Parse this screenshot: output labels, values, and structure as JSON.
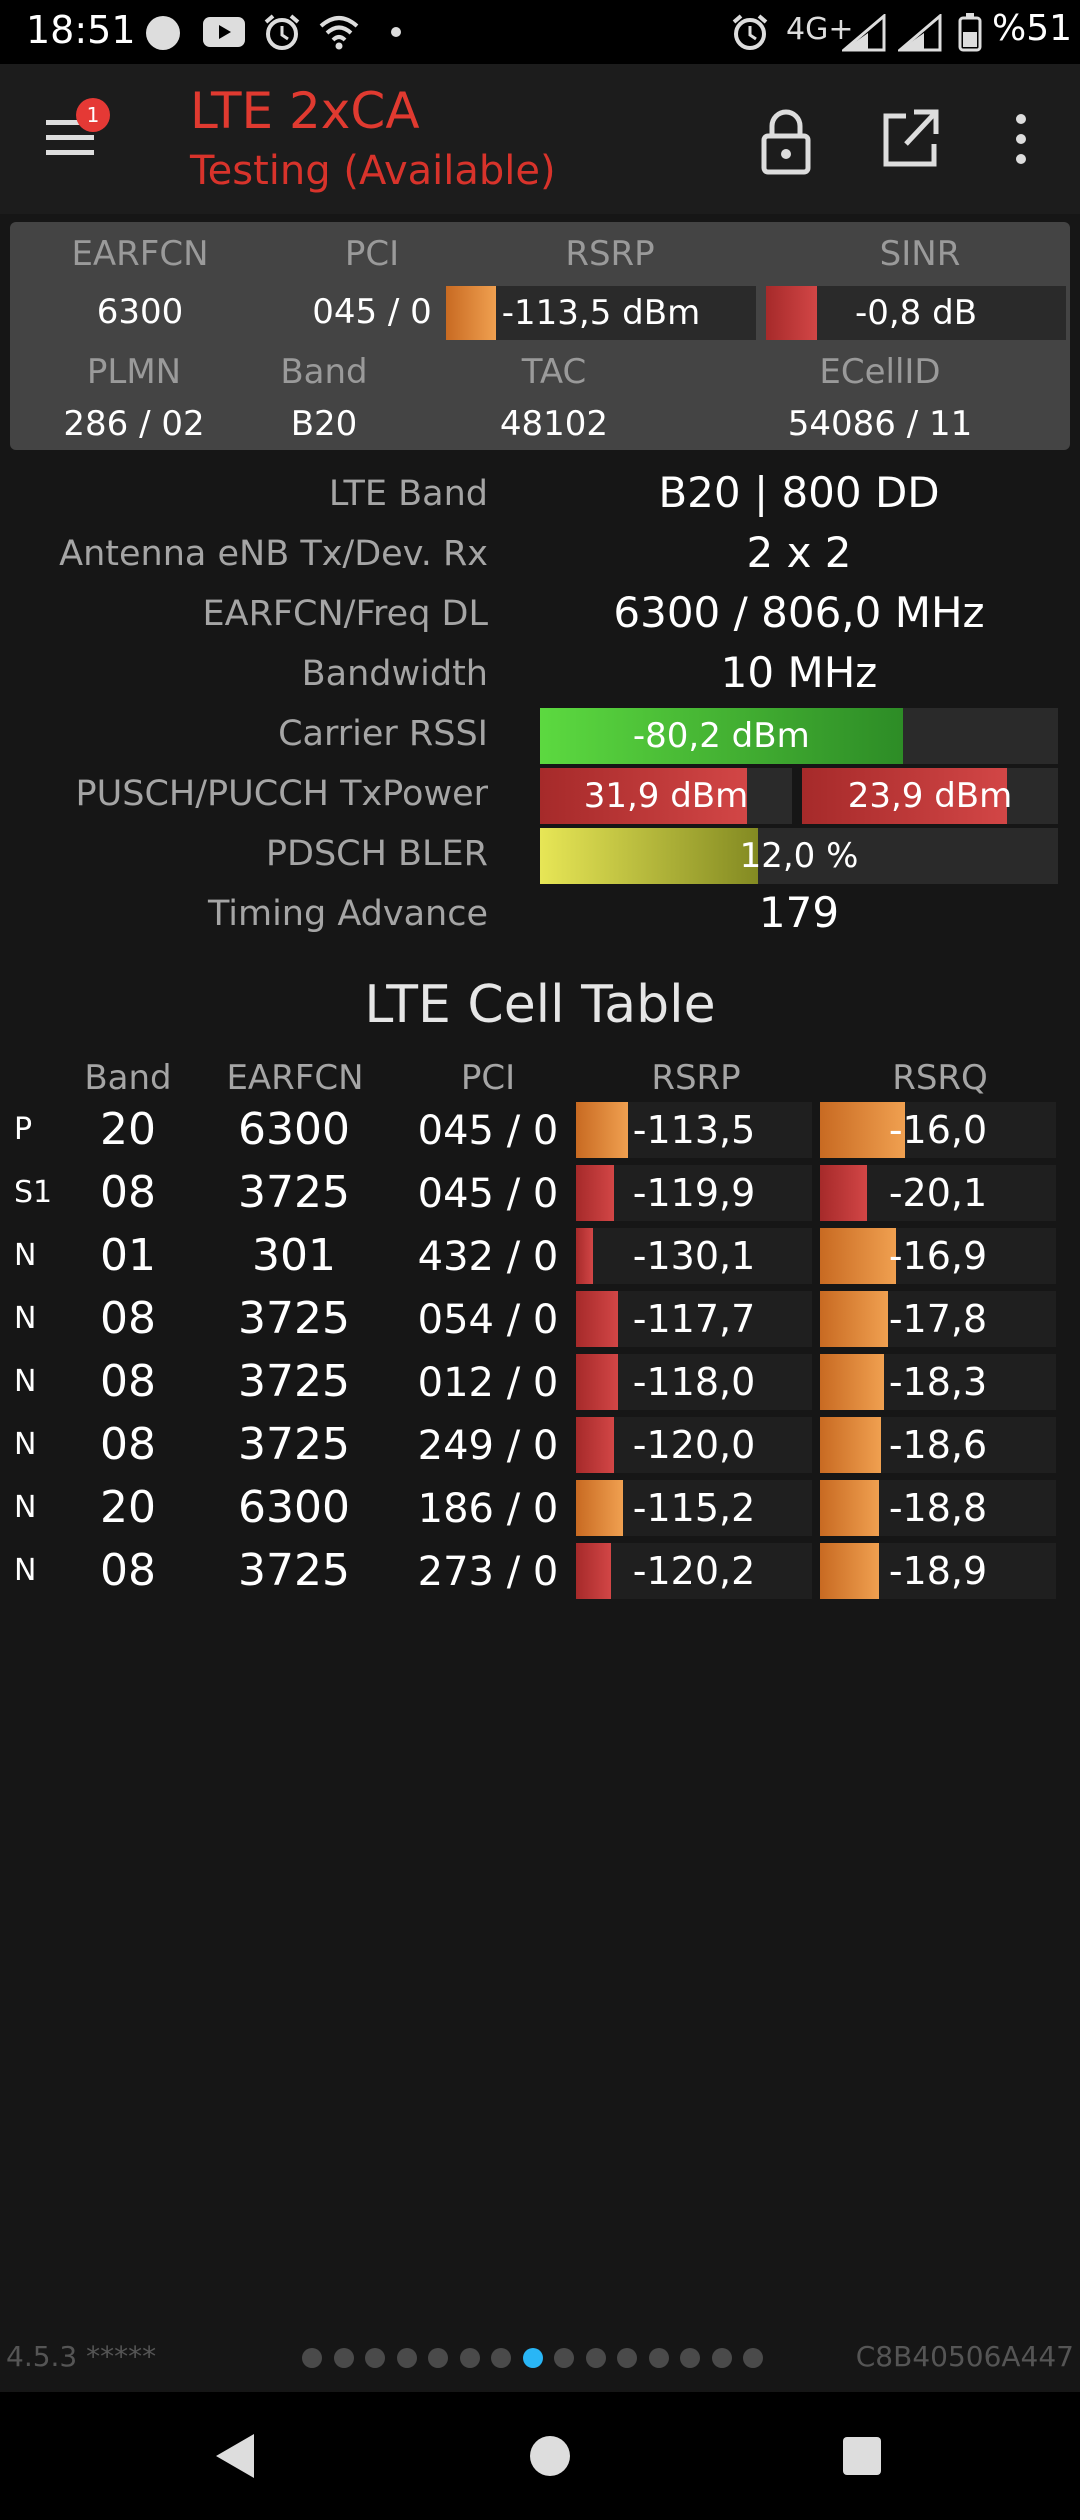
{
  "status_bar": {
    "time": "18:51",
    "network": "4G+",
    "battery": "%51"
  },
  "app_bar": {
    "title": "LTE 2xCA",
    "subtitle": "Testing (Available)",
    "menu_badge": "1"
  },
  "summary": {
    "labels": {
      "earfcn": "EARFCN",
      "pci": "PCI",
      "rsrp": "RSRP",
      "sinr": "SINR",
      "plmn": "PLMN",
      "band": "Band",
      "tac": "TAC",
      "ecellid": "ECellID"
    },
    "earfcn": "6300",
    "pci": "045 / 0",
    "rsrp": "-113,5 dBm",
    "rsrp_level": 0.16,
    "sinr": "-0,8 dB",
    "sinr_level": 0.17,
    "plmn": "286 / 02",
    "band": "B20",
    "tac": "48102",
    "ecellid": "54086 / 11"
  },
  "details": [
    {
      "label": "LTE Band",
      "value": "B20 | 800 DD"
    },
    {
      "label": "Antenna eNB Tx/Dev. Rx",
      "value": "2 x 2"
    },
    {
      "label": "EARFCN/Freq DL",
      "value": "6300 / 806,0 MHz"
    },
    {
      "label": "Bandwidth",
      "value": "10 MHz"
    },
    {
      "label": "Carrier RSSI",
      "value": "-80,2 dBm",
      "level": 0.7
    },
    {
      "label": "PUSCH/PUCCH TxPower",
      "value": "31,9 dBm",
      "value2": "23,9 dBm",
      "level": 0.82,
      "level2": 0.8
    },
    {
      "label": "PDSCH BLER",
      "value": "12,0 %",
      "level": 0.42
    },
    {
      "label": "Timing Advance",
      "value": "179"
    }
  ],
  "cell_table": {
    "title": "LTE Cell Table",
    "headers": [
      "Band",
      "EARFCN",
      "PCI",
      "RSRP",
      "RSRQ"
    ],
    "rows": [
      {
        "type": "P",
        "band": "20",
        "earfcn": "6300",
        "pci": "045 / 0",
        "rsrp": "-113,5",
        "rsrp_level": 0.22,
        "rsrq": "-16,0",
        "rsrq_level": 0.36
      },
      {
        "type": "S1",
        "band": "08",
        "earfcn": "3725",
        "pci": "045 / 0",
        "rsrp": "-119,9",
        "rsrp_level": 0.16,
        "rsrq": "-20,1",
        "rsrq_level": 0.2
      },
      {
        "type": "N",
        "band": "01",
        "earfcn": "301",
        "pci": "432 / 0",
        "rsrp": "-130,1",
        "rsrp_level": 0.07,
        "rsrq": "-16,9",
        "rsrq_level": 0.32
      },
      {
        "type": "N",
        "band": "08",
        "earfcn": "3725",
        "pci": "054 / 0",
        "rsrp": "-117,7",
        "rsrp_level": 0.18,
        "rsrq": "-17,8",
        "rsrq_level": 0.29
      },
      {
        "type": "N",
        "band": "08",
        "earfcn": "3725",
        "pci": "012 / 0",
        "rsrp": "-118,0",
        "rsrp_level": 0.18,
        "rsrq": "-18,3",
        "rsrq_level": 0.27
      },
      {
        "type": "N",
        "band": "08",
        "earfcn": "3725",
        "pci": "249 / 0",
        "rsrp": "-120,0",
        "rsrp_level": 0.16,
        "rsrq": "-18,6",
        "rsrq_level": 0.26
      },
      {
        "type": "N",
        "band": "20",
        "earfcn": "6300",
        "pci": "186 / 0",
        "rsrp": "-115,2",
        "rsrp_level": 0.2,
        "rsrq": "-18,8",
        "rsrq_level": 0.25
      },
      {
        "type": "N",
        "band": "08",
        "earfcn": "3725",
        "pci": "273 / 0",
        "rsrp": "-120,2",
        "rsrp_level": 0.15,
        "rsrq": "-18,9",
        "rsrq_level": 0.25
      }
    ]
  },
  "footer": {
    "version": "4.5.3 *****",
    "device_id": "C8B40506A447",
    "page_count": 15,
    "active_page": 7
  },
  "colors": {
    "accent": "#e03a30",
    "active_dot": "#29b6f6",
    "good": "#5cd940",
    "warn": "#f0a050",
    "bad": "#c63a3a",
    "bler": "#e7e656"
  },
  "icons": [
    "hamburger-menu-icon",
    "lock-icon",
    "open-external-icon",
    "more-vert-icon",
    "back-nav-icon",
    "home-nav-icon",
    "recents-nav-icon"
  ]
}
